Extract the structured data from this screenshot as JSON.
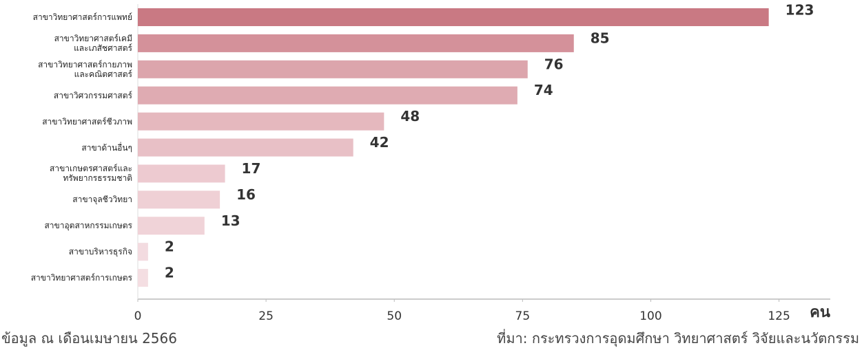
{
  "chart_data": {
    "type": "barh",
    "categories": [
      "สาขาวิทยาศาสตร์การแพทย์",
      "สาขาวิทยาศาสตร์เคมี\nและเภสัชศาสตร์",
      "สาขาวิทยาศาสตร์กายภาพ\nและคณิตศาสตร์",
      "สาขาวิศวกรรมศาสตร์",
      "สาขาวิทยาศาสตร์ชีวภาพ",
      "สาขาด้านอื่นๆ",
      "สาขาเกษตรศาสตร์และ\nทรัพยากรธรรมชาติ",
      "สาขาจุลชีววิทยา",
      "สาขาอุตสาหกรรมเกษตร",
      "สาขาบริหารธุรกิจ",
      "สาขาวิทยาศาสตร์การเกษตร"
    ],
    "values": [
      123,
      85,
      76,
      74,
      48,
      42,
      17,
      16,
      13,
      2,
      2
    ],
    "colors": [
      "#c97983",
      "#d4919a",
      "#dca5ac",
      "#dfabb2",
      "#e5b8be",
      "#e8c0c6",
      "#edcad0",
      "#efd0d5",
      "#f0d3d8",
      "#f3dbe0",
      "#f4dee2"
    ],
    "xlim": [
      0,
      135
    ],
    "xticks": [
      0,
      25,
      50,
      75,
      100,
      125
    ],
    "x_axis_label": "คน",
    "note": "ข้อมูล ณ เดือนเมษายน 2566",
    "source": "ที่มา: กระทรวงการอุดมศึกษา วิทยาศาสตร์ วิจัยและนวัตกรรม"
  }
}
